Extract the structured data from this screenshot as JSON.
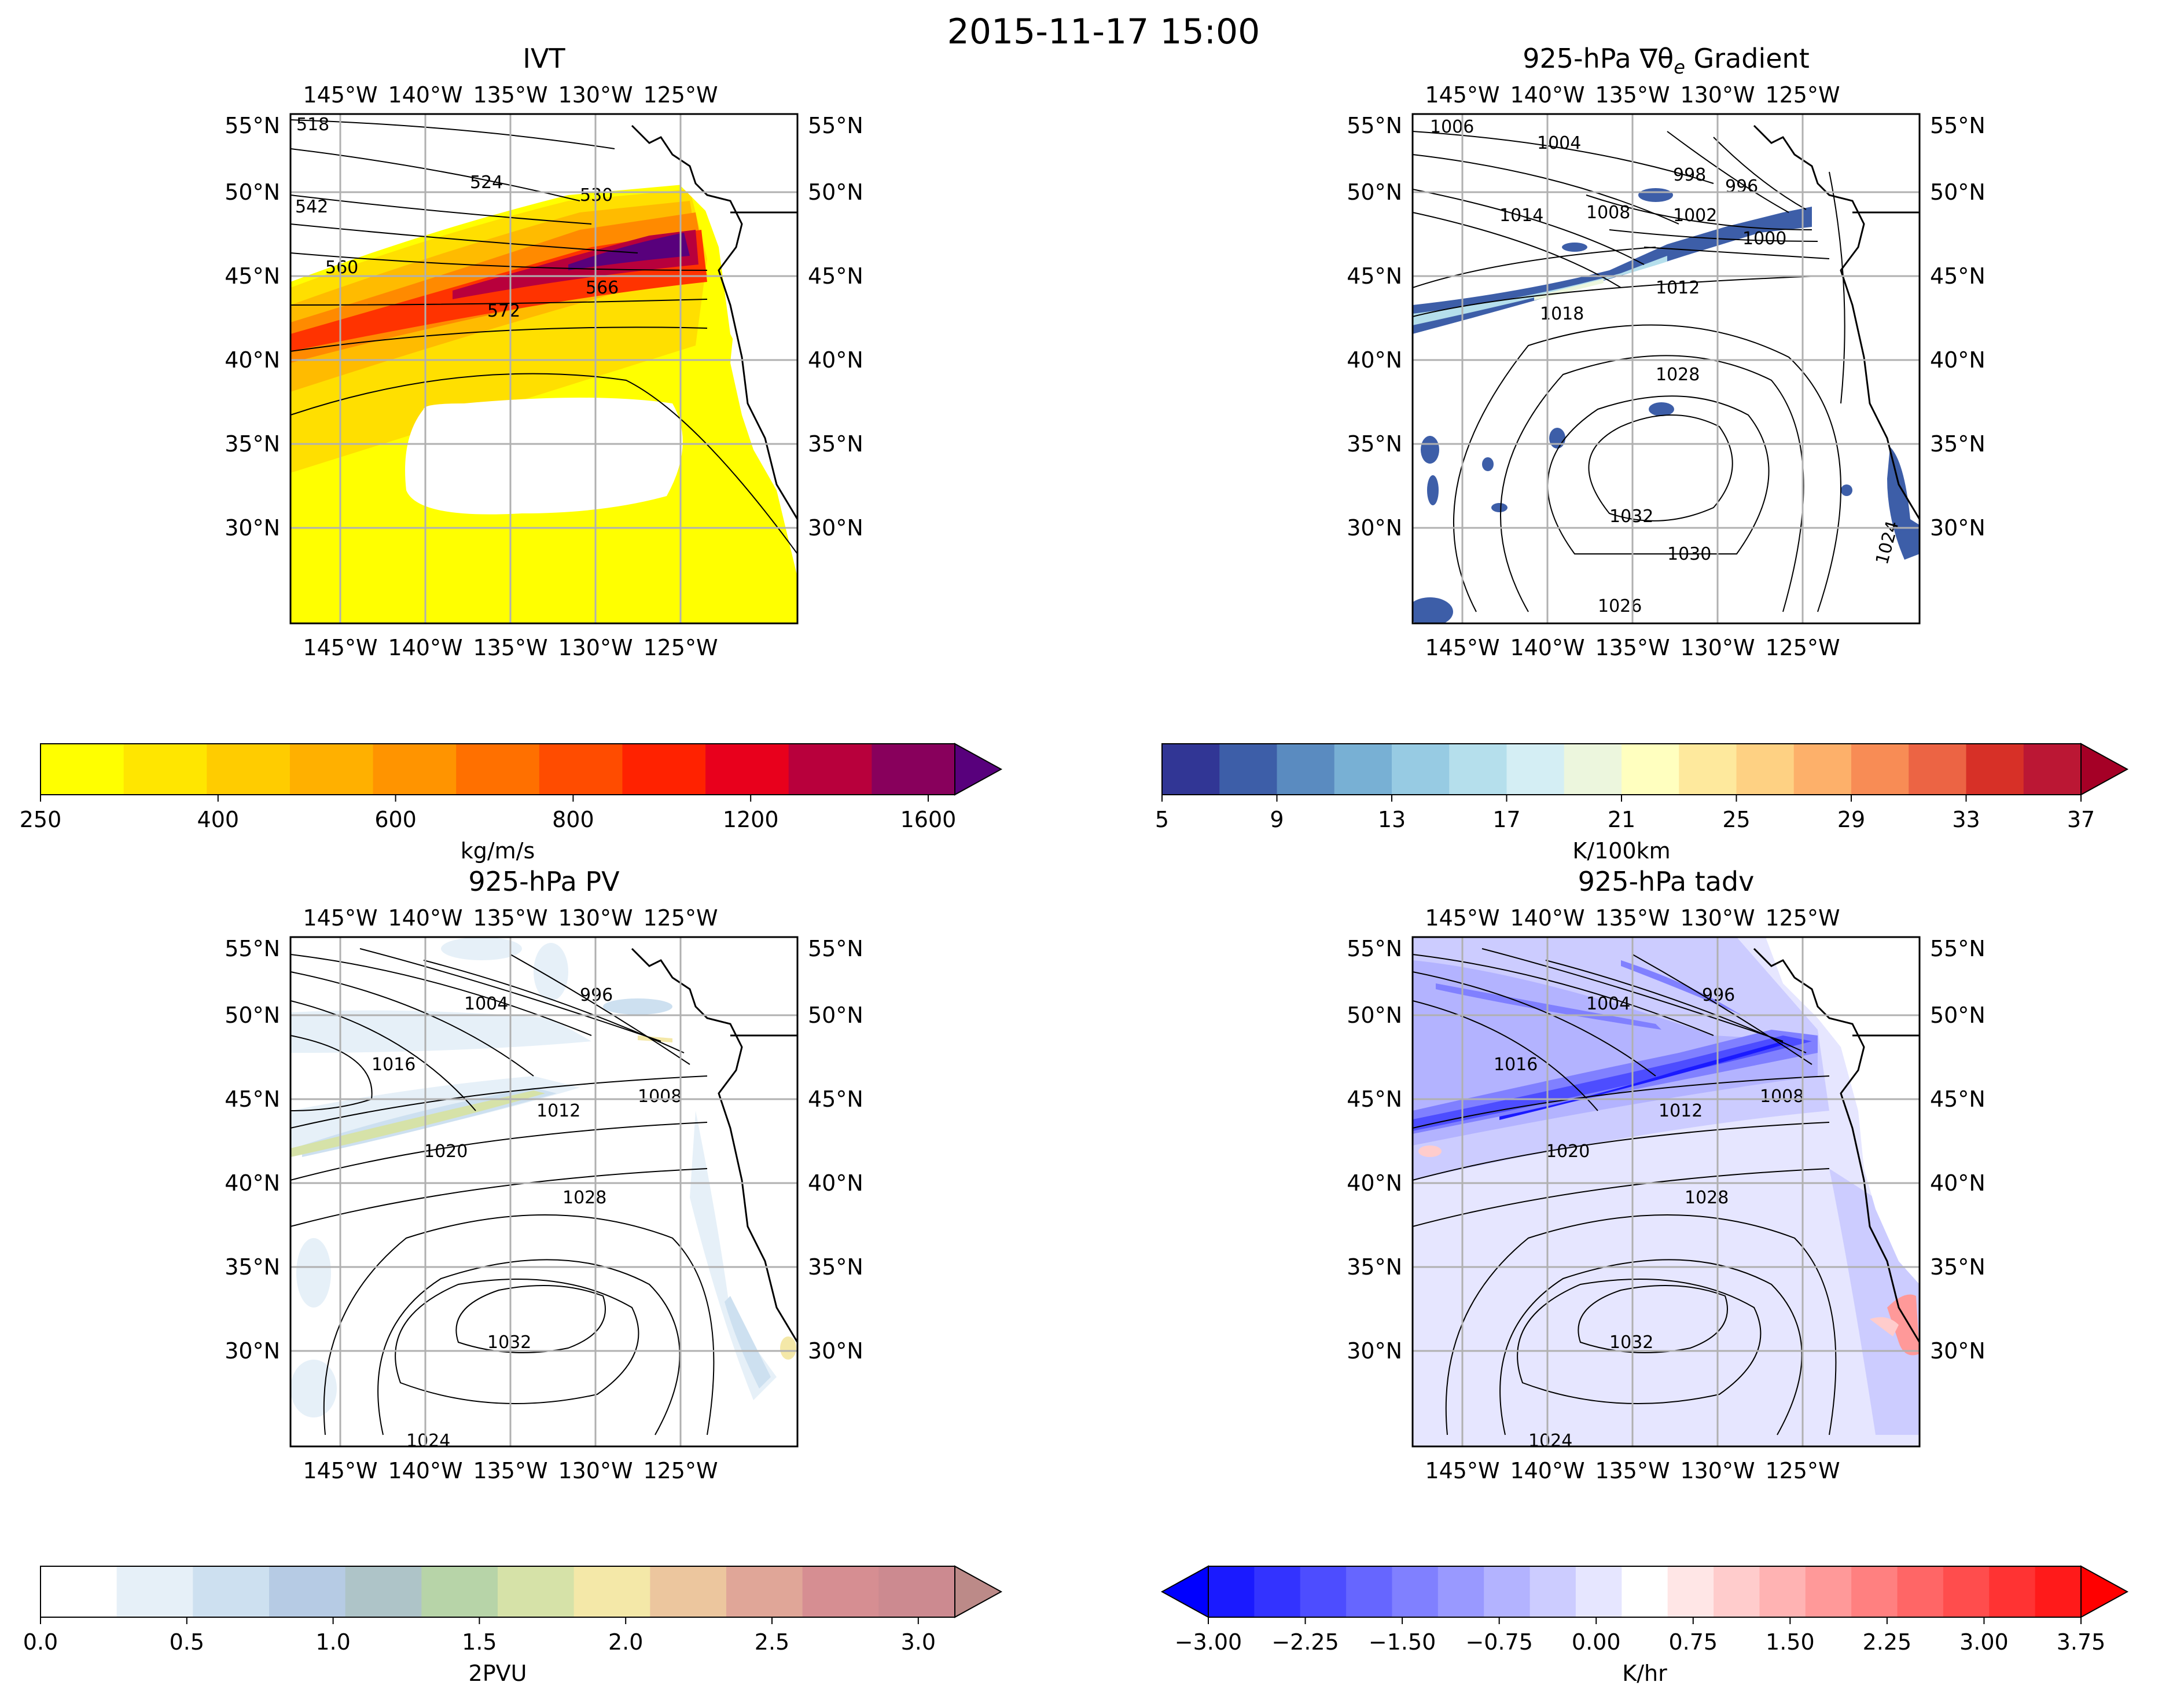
{
  "figure": {
    "title": "2015-11-17 15:00"
  },
  "ticks": {
    "lon": [
      "145°W",
      "140°W",
      "135°W",
      "130°W",
      "125°W"
    ],
    "lat": [
      "55°N",
      "50°N",
      "45°N",
      "40°N",
      "35°N",
      "30°N"
    ]
  },
  "panels": [
    {
      "id": "ivt",
      "title": "IVT",
      "cbar_label": "kg/m/s",
      "cbar_ticks": [
        "250",
        "400",
        "600",
        "800",
        "1200",
        "1600"
      ],
      "cbar_colors": [
        "#ffff00",
        "#ffe600",
        "#ffcc00",
        "#ffb000",
        "#ff9400",
        "#ff7000",
        "#ff4c00",
        "#ff2200",
        "#e8001c",
        "#b8003c",
        "#88005c",
        "#58007c"
      ],
      "contours": [
        {
          "label": "518"
        },
        {
          "label": "524"
        },
        {
          "label": "530"
        },
        {
          "label": "542"
        },
        {
          "label": "560"
        },
        {
          "label": "566"
        },
        {
          "label": "572"
        }
      ]
    },
    {
      "id": "grad",
      "title_prefix": "925-hPa ∇θ",
      "title_sub": "e",
      "title_suffix": " Gradient",
      "cbar_label": "K/100km",
      "cbar_ticks": [
        "5",
        "9",
        "13",
        "17",
        "21",
        "25",
        "29",
        "33",
        "37"
      ],
      "cbar_colors": [
        "#313695",
        "#3d5ea8",
        "#5a8bc0",
        "#78b0d4",
        "#97cbe3",
        "#b5dfec",
        "#d4eef4",
        "#ecf6dd",
        "#ffffbf",
        "#fee99d",
        "#fed183",
        "#fdb06a",
        "#f88c55",
        "#ec6444",
        "#d73027",
        "#bb1734",
        "#a50026"
      ],
      "contours": [
        {
          "label": "1006"
        },
        {
          "label": "1004"
        },
        {
          "label": "998"
        },
        {
          "label": "996"
        },
        {
          "label": "1014"
        },
        {
          "label": "1008"
        },
        {
          "label": "1002"
        },
        {
          "label": "1000"
        },
        {
          "label": "1012"
        },
        {
          "label": "1018"
        },
        {
          "label": "1028"
        },
        {
          "label": "1032"
        },
        {
          "label": "1030"
        },
        {
          "label": "1026"
        },
        {
          "label": "1024"
        }
      ]
    },
    {
      "id": "pv",
      "title": "925-hPa PV",
      "cbar_label": "2PVU",
      "cbar_ticks": [
        "0.0",
        "0.5",
        "1.0",
        "1.5",
        "2.0",
        "2.5",
        "3.0"
      ],
      "cbar_colors": [
        "#ffffff",
        "#e6f0f8",
        "#cde0f0",
        "#b6cbe4",
        "#aec4c8",
        "#b7d4a8",
        "#d6e2a8",
        "#f4e8a8",
        "#ecc69e",
        "#e0a698",
        "#d68e92",
        "#cc8a90",
        "#bc8a88"
      ],
      "contours": [
        {
          "label": "1004"
        },
        {
          "label": "996"
        },
        {
          "label": "1016"
        },
        {
          "label": "1008"
        },
        {
          "label": "1012"
        },
        {
          "label": "1020"
        },
        {
          "label": "1028"
        },
        {
          "label": "1032"
        },
        {
          "label": "1024"
        }
      ]
    },
    {
      "id": "tadv",
      "title": "925-hPa tadv",
      "cbar_label": "K/hr",
      "cbar_ticks": [
        "−3.00",
        "−2.25",
        "−1.50",
        "−0.75",
        "0.00",
        "0.75",
        "1.50",
        "2.25",
        "3.00",
        "3.75"
      ],
      "cbar_colors": [
        "#0000ff",
        "#1a1aff",
        "#3333ff",
        "#4d4dff",
        "#6666ff",
        "#8080ff",
        "#9999ff",
        "#b3b3ff",
        "#ccccff",
        "#e6e6ff",
        "#ffffff",
        "#ffe6e6",
        "#ffcccc",
        "#ffb3b3",
        "#ff9999",
        "#ff8080",
        "#ff6666",
        "#ff4d4d",
        "#ff3333",
        "#ff1a1a",
        "#ff0000"
      ],
      "contours": [
        {
          "label": "1004"
        },
        {
          "label": "996"
        },
        {
          "label": "1016"
        },
        {
          "label": "1008"
        },
        {
          "label": "1012"
        },
        {
          "label": "1020"
        },
        {
          "label": "1028"
        },
        {
          "label": "1032"
        },
        {
          "label": "1024"
        }
      ]
    }
  ]
}
